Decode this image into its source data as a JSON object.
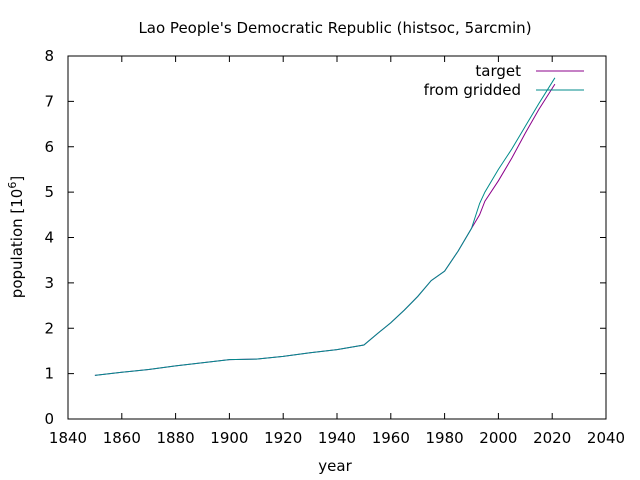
{
  "chart_data": {
    "type": "line",
    "title": "Lao People's Democratic Republic (histsoc, 5arcmin)",
    "xlabel": "year",
    "ylabel": {
      "prefix": "population [10",
      "sup": "6",
      "suffix": "]"
    },
    "xlim": [
      1840,
      2040
    ],
    "ylim": [
      0,
      8
    ],
    "xticks": [
      1840,
      1860,
      1880,
      1900,
      1920,
      1940,
      1960,
      1980,
      2000,
      2020,
      2040
    ],
    "yticks": [
      0,
      1,
      2,
      3,
      4,
      5,
      6,
      7,
      8
    ],
    "legend_position": "top-right",
    "series": [
      {
        "name": "target",
        "color": "#8b008b",
        "x": [
          1850,
          1860,
          1870,
          1880,
          1890,
          1900,
          1910,
          1920,
          1930,
          1940,
          1950,
          1955,
          1960,
          1965,
          1970,
          1975,
          1980,
          1985,
          1990,
          1993,
          1995,
          2000,
          2005,
          2010,
          2015,
          2021
        ],
        "y": [
          0.96,
          1.03,
          1.09,
          1.17,
          1.24,
          1.31,
          1.32,
          1.38,
          1.46,
          1.53,
          1.63,
          1.88,
          2.12,
          2.4,
          2.7,
          3.05,
          3.26,
          3.7,
          4.2,
          4.5,
          4.8,
          5.25,
          5.75,
          6.3,
          6.82,
          7.38
        ]
      },
      {
        "name": "from gridded",
        "color": "#008b8b",
        "x": [
          1850,
          1860,
          1870,
          1880,
          1890,
          1900,
          1910,
          1920,
          1930,
          1940,
          1950,
          1955,
          1960,
          1965,
          1970,
          1975,
          1980,
          1985,
          1990,
          1993,
          1995,
          2000,
          2005,
          2010,
          2015,
          2021
        ],
        "y": [
          0.96,
          1.03,
          1.09,
          1.17,
          1.24,
          1.31,
          1.32,
          1.38,
          1.46,
          1.53,
          1.63,
          1.88,
          2.12,
          2.4,
          2.7,
          3.05,
          3.26,
          3.7,
          4.2,
          4.75,
          5.0,
          5.5,
          5.95,
          6.45,
          6.95,
          7.52
        ]
      }
    ]
  }
}
